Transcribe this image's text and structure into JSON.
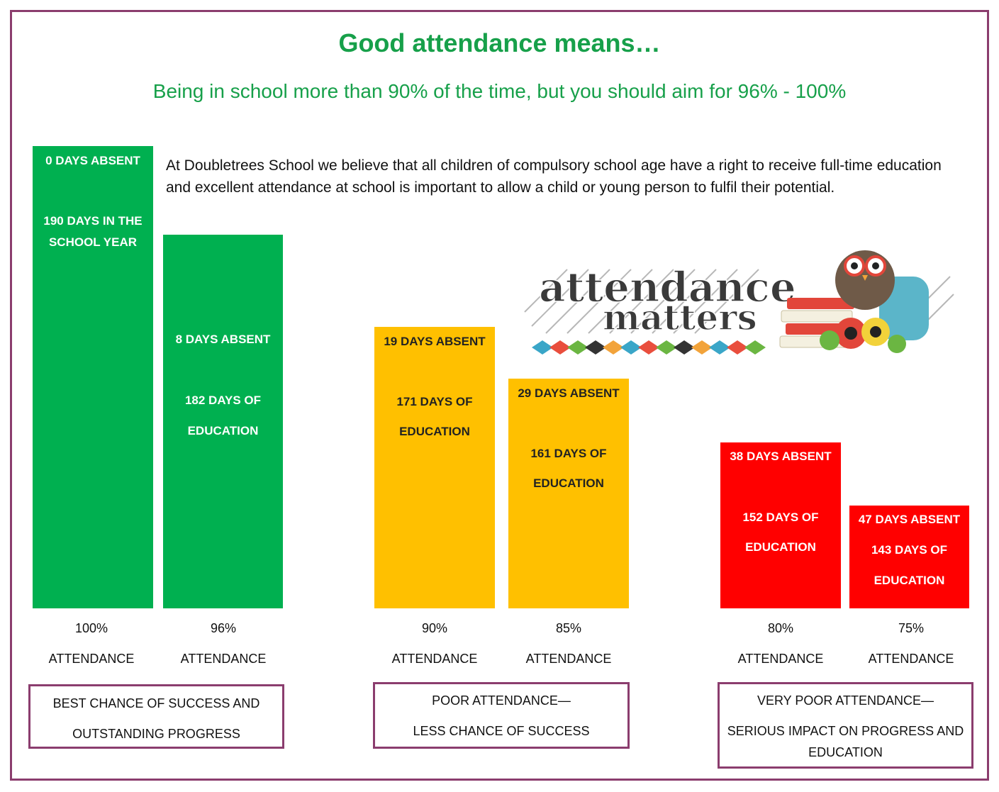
{
  "header": {
    "title": "Good attendance means…",
    "subtitle": "Being in school more than 90% of the time, but you should aim for 96% - 100%"
  },
  "intro": "At Doubletrees School we believe that all children of compulsory school age have a right to receive full-time education and excellent attendance at school is important to allow a child or young person to fulfil their potential.",
  "logo": {
    "line1": "attendance",
    "line2": "matters"
  },
  "colors": {
    "green": "#00b050",
    "amber": "#ffc000",
    "red": "#ff0000",
    "border": "#8b3d6e",
    "heading": "#17a04a"
  },
  "chart_data": {
    "type": "bar",
    "categories": [
      "100%",
      "96%",
      "90%",
      "85%",
      "80%",
      "75%"
    ],
    "values": [
      190,
      182,
      171,
      161,
      152,
      143
    ],
    "bars": [
      {
        "percent": "100%",
        "attendance_label": "ATTENDANCE",
        "days_attended": 190,
        "days_absent": 0,
        "line1": "0 DAYS ABSENT",
        "line2": "190 DAYS IN THE",
        "line3": "SCHOOL YEAR",
        "color": "green"
      },
      {
        "percent": "96%",
        "attendance_label": "ATTENDANCE",
        "days_attended": 182,
        "days_absent": 8,
        "line1": "8 DAYS ABSENT",
        "line2": "182 DAYS OF",
        "line3": "EDUCATION",
        "color": "green"
      },
      {
        "percent": "90%",
        "attendance_label": "ATTENDANCE",
        "days_attended": 171,
        "days_absent": 19,
        "line1": "19 DAYS ABSENT",
        "line2": "171 DAYS OF",
        "line3": "EDUCATION",
        "color": "amber"
      },
      {
        "percent": "85%",
        "attendance_label": "ATTENDANCE",
        "days_attended": 161,
        "days_absent": 29,
        "line1": "29 DAYS ABSENT",
        "line2": "161 DAYS OF",
        "line3": "EDUCATION",
        "color": "amber"
      },
      {
        "percent": "80%",
        "attendance_label": "ATTENDANCE",
        "days_attended": 152,
        "days_absent": 38,
        "line1": "38 DAYS ABSENT",
        "line2": "152 DAYS OF",
        "line3": "EDUCATION",
        "color": "red"
      },
      {
        "percent": "75%",
        "attendance_label": "ATTENDANCE",
        "days_attended": 143,
        "days_absent": 47,
        "line1": "47 DAYS ABSENT",
        "line2": "143 DAYS OF",
        "line3": "EDUCATION",
        "color": "red"
      }
    ],
    "groups": [
      {
        "line1": "BEST CHANCE OF SUCCESS AND",
        "line2": "OUTSTANDING PROGRESS",
        "line3": ""
      },
      {
        "line1": "POOR ATTENDANCE—",
        "line2": "LESS CHANCE OF SUCCESS",
        "line3": ""
      },
      {
        "line1": "VERY POOR ATTENDANCE—",
        "line2": "SERIOUS IMPACT ON PROGRESS AND",
        "line3": "EDUCATION"
      }
    ]
  }
}
